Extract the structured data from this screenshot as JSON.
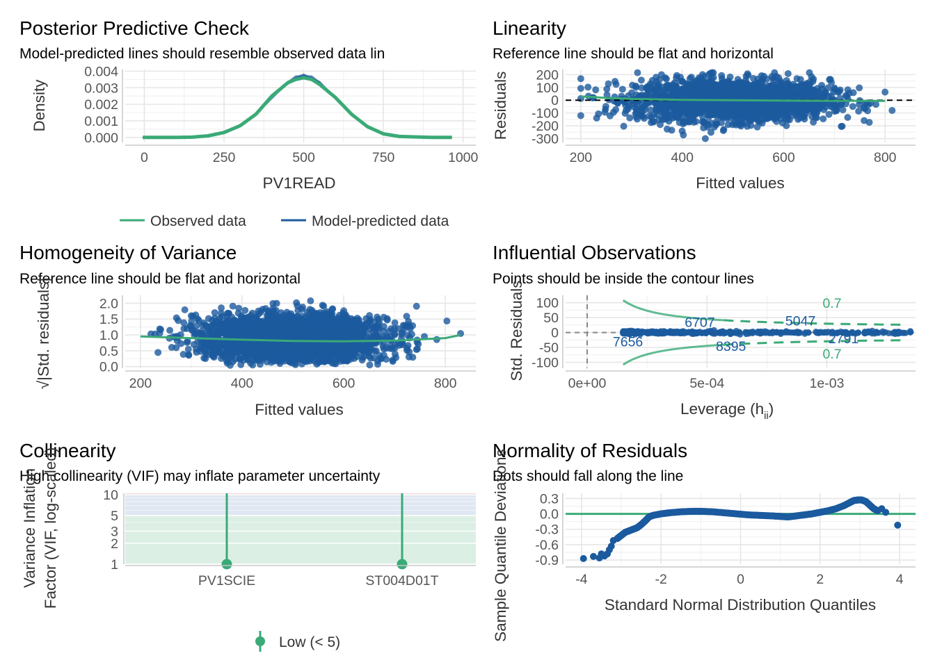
{
  "colors": {
    "green": "#3aaa77",
    "blue": "#1b5a9e",
    "red_band": "#f7d9dc",
    "blue_band": "#dfe7f2",
    "green_band": "#dcefe4"
  },
  "panels": {
    "ppc": {
      "title": "Posterior Predictive Check",
      "subtitle": "Model-predicted lines should resemble observed data lin",
      "xlabel": "PV1READ",
      "ylabel": "Density"
    },
    "linearity": {
      "title": "Linearity",
      "subtitle": "Reference line should be flat and horizontal",
      "xlabel": "Fitted values",
      "ylabel": "Residuals"
    },
    "homogeneity": {
      "title": "Homogeneity of Variance",
      "subtitle": "Reference line should be flat and horizontal",
      "xlabel": "Fitted values",
      "ylabel": "√|Std. residuals|"
    },
    "influence": {
      "title": "Influential Observations",
      "subtitle": "Points should be inside the contour lines",
      "xlabel": "Leverage (h",
      "xlabel_sub": "ii",
      "xlabel_close": ")",
      "ylabel": "Std. Residuals"
    },
    "collinearity": {
      "title": "Collinearity",
      "subtitle": "High collinearity (VIF) may inflate parameter uncertainty",
      "ylabel_1": "Variance Inflation",
      "ylabel_2": "Factor (VIF, log-scaled)",
      "legend": "Low (< 5)"
    },
    "normality": {
      "title": "Normality of Residuals",
      "subtitle": "Dots should fall along the line",
      "xlabel": "Standard Normal Distribution Quantiles",
      "ylabel": "Sample Quantile Deviations"
    }
  },
  "chart_data": [
    {
      "id": "ppc",
      "type": "line",
      "x_ticks": [
        "0",
        "250",
        "500",
        "750",
        "1000"
      ],
      "y_ticks": [
        "0.000",
        "0.001",
        "0.002",
        "0.003",
        "0.004"
      ],
      "xlim": [
        -60,
        1040
      ],
      "ylim": [
        -0.0003,
        0.0041
      ],
      "series": [
        {
          "name": "Observed data",
          "color": "#3aaa77",
          "x": [
            -5,
            100,
            150,
            200,
            250,
            300,
            350,
            400,
            450,
            475,
            500,
            525,
            550,
            600,
            650,
            700,
            750,
            800,
            900,
            965
          ],
          "y": [
            0,
            0,
            2e-05,
            0.0001,
            0.0003,
            0.0007,
            0.0014,
            0.0025,
            0.0033,
            0.0035,
            0.0036,
            0.0035,
            0.0032,
            0.0024,
            0.0014,
            0.00065,
            0.00022,
            6e-05,
            0,
            0
          ]
        },
        {
          "name": "Model-predicted data",
          "color": "#1b5a9e",
          "x": [
            -5,
            100,
            150,
            200,
            250,
            300,
            350,
            400,
            450,
            475,
            500,
            525,
            550,
            600,
            650,
            700,
            750,
            800,
            900,
            965
          ],
          "y": [
            0,
            0,
            1e-05,
            8e-05,
            0.00028,
            0.0007,
            0.0014,
            0.0024,
            0.0033,
            0.0036,
            0.0037,
            0.0036,
            0.0033,
            0.0024,
            0.0014,
            0.0007,
            0.00025,
            6e-05,
            0,
            0
          ]
        }
      ],
      "legend": [
        "Observed data",
        "Model-predicted data"
      ]
    },
    {
      "id": "linearity",
      "type": "scatter",
      "x_ticks": [
        "200",
        "400",
        "600",
        "800"
      ],
      "y_ticks": [
        "200",
        "100",
        "0",
        "-100",
        "-200",
        "-300"
      ],
      "xlim": [
        170,
        860
      ],
      "ylim": [
        -330,
        240
      ],
      "point_cloud": {
        "center_x": 500,
        "sd_x": 95,
        "x_range": [
          200,
          830
        ],
        "resid_sd": 80,
        "n": 2200
      },
      "smooth": {
        "x": [
          200,
          250,
          300,
          400,
          500,
          600,
          700,
          800
        ],
        "y": [
          30,
          18,
          10,
          3,
          0,
          -3,
          -5,
          -6
        ]
      },
      "reference_y": 0
    },
    {
      "id": "homogeneity",
      "type": "scatter",
      "x_ticks": [
        "200",
        "400",
        "600",
        "800"
      ],
      "y_ticks": [
        "2.0",
        "1.5",
        "1.0",
        "0.5",
        "0.0"
      ],
      "xlim": [
        170,
        860
      ],
      "ylim": [
        -0.05,
        2.25
      ],
      "point_cloud": {
        "center_x": 500,
        "sd_x": 95,
        "x_range": [
          200,
          830
        ],
        "y_range": [
          0,
          2.15
        ],
        "n": 2200
      },
      "smooth": {
        "x": [
          200,
          300,
          400,
          500,
          600,
          700,
          800,
          830
        ],
        "y": [
          0.95,
          0.9,
          0.85,
          0.81,
          0.8,
          0.82,
          0.9,
          1.0
        ]
      }
    },
    {
      "id": "influence",
      "type": "scatter",
      "x_ticks": [
        "0e+00",
        "5e-04",
        "1e-03"
      ],
      "y_ticks": [
        "100",
        "50",
        "0",
        "-50",
        "-100"
      ],
      "xlim": [
        -9e-05,
        0.00137
      ],
      "ylim": [
        -120,
        125
      ],
      "cutoff_label": "0.7",
      "points_x_range": [
        0.00015,
        0.00135
      ],
      "labels": [
        {
          "text": "6707",
          "x": 0.00047,
          "y": 35
        },
        {
          "text": "5047",
          "x": 0.00089,
          "y": 40
        },
        {
          "text": "7656",
          "x": 0.00017,
          "y": -30
        },
        {
          "text": "8395",
          "x": 0.0006,
          "y": -45
        },
        {
          "text": "2791",
          "x": 0.00107,
          "y": -20
        }
      ]
    },
    {
      "id": "collinearity",
      "type": "scatter",
      "categories": [
        "PV1SCIE",
        "ST004D01T"
      ],
      "values": [
        1,
        1
      ],
      "y_ticks": [
        "10",
        "5",
        "3",
        "2",
        "1"
      ],
      "scale": "log",
      "ylim": [
        1,
        10.5
      ]
    },
    {
      "id": "normality",
      "type": "scatter",
      "x_ticks": [
        "-4",
        "-2",
        "0",
        "2",
        "4"
      ],
      "y_ticks": [
        "0.3",
        "0.0",
        "-0.3",
        "-0.6",
        "-0.9"
      ],
      "xlim": [
        -4.4,
        4.4
      ],
      "ylim": [
        -0.98,
        0.4
      ],
      "points": [
        [
          -3.95,
          -0.87
        ],
        [
          -3.7,
          -0.83
        ],
        [
          -3.55,
          -0.86
        ],
        [
          -3.5,
          -0.78
        ],
        [
          -3.42,
          -0.82
        ],
        [
          -3.35,
          -0.78
        ],
        [
          -3.3,
          -0.7
        ],
        [
          -3.25,
          -0.63
        ],
        [
          -3.2,
          -0.52
        ],
        [
          -3.1,
          -0.48
        ],
        [
          -3.0,
          -0.42
        ],
        [
          -2.9,
          -0.36
        ],
        [
          -2.8,
          -0.33
        ],
        [
          -2.7,
          -0.3
        ],
        [
          -2.6,
          -0.27
        ],
        [
          -2.5,
          -0.21
        ],
        [
          -2.4,
          -0.14
        ],
        [
          -2.3,
          -0.06
        ],
        [
          -2.2,
          -0.03
        ],
        [
          -2.0,
          0.0
        ],
        [
          -1.8,
          0.02
        ],
        [
          -1.5,
          0.04
        ],
        [
          -1.2,
          0.05
        ],
        [
          -1.0,
          0.05
        ],
        [
          -0.7,
          0.04
        ],
        [
          -0.4,
          0.02
        ],
        [
          -0.1,
          0.0
        ],
        [
          0.2,
          -0.02
        ],
        [
          0.5,
          -0.03
        ],
        [
          0.8,
          -0.04
        ],
        [
          1.0,
          -0.05
        ],
        [
          1.2,
          -0.06
        ],
        [
          1.4,
          -0.04
        ],
        [
          1.6,
          -0.02
        ],
        [
          1.8,
          0.0
        ],
        [
          2.0,
          0.03
        ],
        [
          2.2,
          0.06
        ],
        [
          2.4,
          0.1
        ],
        [
          2.6,
          0.16
        ],
        [
          2.75,
          0.22
        ],
        [
          2.85,
          0.26
        ],
        [
          2.95,
          0.27
        ],
        [
          3.05,
          0.27
        ],
        [
          3.15,
          0.24
        ],
        [
          3.25,
          0.17
        ],
        [
          3.35,
          0.1
        ],
        [
          3.45,
          0.06
        ],
        [
          3.55,
          0.1
        ],
        [
          3.65,
          0.03
        ],
        [
          3.95,
          -0.22
        ]
      ],
      "reference_y": 0
    }
  ]
}
